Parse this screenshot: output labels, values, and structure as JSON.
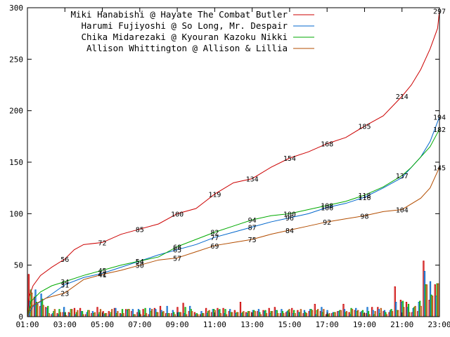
{
  "chart_data": {
    "type": "line",
    "title": "",
    "xlabel": "",
    "ylabel": "",
    "xlim": [
      "01:00",
      "23:00"
    ],
    "ylim": [
      0,
      300
    ],
    "grid": false,
    "legend_position": "top-right",
    "x_ticks": [
      "01:00",
      "03:00",
      "05:00",
      "07:00",
      "09:00",
      "11:00",
      "13:00",
      "15:00",
      "17:00",
      "19:00",
      "21:00",
      "23:00"
    ],
    "y_ticks": [
      "0",
      "50",
      "100",
      "150",
      "200",
      "250",
      "300"
    ],
    "colors": [
      "#cc0000",
      "#0066cc",
      "#00aa00",
      "#b34d00"
    ],
    "series": [
      {
        "name": "Miki Hanabishi @ Hayate The Combat Butler",
        "color": "#cc0000",
        "points": [
          [
            1.0,
            0
          ],
          [
            1.1,
            20
          ],
          [
            1.3,
            30
          ],
          [
            1.7,
            40
          ],
          [
            2.3,
            48
          ],
          [
            3.0,
            56
          ],
          [
            3.5,
            65
          ],
          [
            4.0,
            70
          ],
          [
            5.0,
            72
          ],
          [
            6.0,
            80
          ],
          [
            7.0,
            85
          ],
          [
            8.0,
            90
          ],
          [
            9.0,
            100
          ],
          [
            10.0,
            105
          ],
          [
            10.5,
            112
          ],
          [
            11.0,
            119
          ],
          [
            12.0,
            130
          ],
          [
            13.0,
            134
          ],
          [
            14.0,
            145
          ],
          [
            15.0,
            154
          ],
          [
            16.0,
            160
          ],
          [
            17.0,
            168
          ],
          [
            18.0,
            174
          ],
          [
            19.0,
            185
          ],
          [
            20.0,
            195
          ],
          [
            21.0,
            214
          ],
          [
            21.5,
            225
          ],
          [
            22.0,
            240
          ],
          [
            22.5,
            260
          ],
          [
            22.9,
            280
          ],
          [
            23.0,
            297
          ]
        ],
        "labels": [
          [
            3.0,
            56
          ],
          [
            5.0,
            72
          ],
          [
            7.0,
            85
          ],
          [
            9.0,
            100
          ],
          [
            11.0,
            119
          ],
          [
            13.0,
            134
          ],
          [
            15.0,
            154
          ],
          [
            17.0,
            168
          ],
          [
            19.0,
            185
          ],
          [
            21.0,
            214
          ],
          [
            23.0,
            297
          ]
        ]
      },
      {
        "name": "Harumi Fujiyoshi @ So Long, Mr. Despair",
        "color": "#0066cc",
        "points": [
          [
            1.0,
            0
          ],
          [
            1.3,
            10
          ],
          [
            2.0,
            18
          ],
          [
            3.0,
            31
          ],
          [
            4.0,
            38
          ],
          [
            5.0,
            42
          ],
          [
            6.0,
            48
          ],
          [
            7.0,
            54
          ],
          [
            8.0,
            60
          ],
          [
            9.0,
            65
          ],
          [
            10.0,
            70
          ],
          [
            11.0,
            77
          ],
          [
            12.0,
            82
          ],
          [
            13.0,
            87
          ],
          [
            14.0,
            92
          ],
          [
            15.0,
            96
          ],
          [
            16.0,
            100
          ],
          [
            17.0,
            106
          ],
          [
            18.0,
            110
          ],
          [
            19.0,
            116
          ],
          [
            20.0,
            125
          ],
          [
            21.0,
            135
          ],
          [
            21.5,
            145
          ],
          [
            22.0,
            155
          ],
          [
            22.5,
            170
          ],
          [
            23.0,
            194
          ]
        ],
        "labels": [
          [
            3.0,
            31
          ],
          [
            5.0,
            42
          ],
          [
            7.0,
            54
          ],
          [
            9.0,
            65
          ],
          [
            11.0,
            77
          ],
          [
            13.0,
            87
          ],
          [
            15.0,
            96
          ],
          [
            17.0,
            106
          ],
          [
            19.0,
            116
          ],
          [
            23.0,
            194
          ]
        ]
      },
      {
        "name": "Chika Midarezaki @ Kyouran Kazoku Nikki",
        "color": "#00aa00",
        "points": [
          [
            1.0,
            0
          ],
          [
            1.2,
            15
          ],
          [
            1.7,
            24
          ],
          [
            2.3,
            30
          ],
          [
            3.0,
            34
          ],
          [
            4.0,
            40
          ],
          [
            5.0,
            45
          ],
          [
            6.0,
            50
          ],
          [
            7.0,
            54
          ],
          [
            8.0,
            58
          ],
          [
            9.0,
            68
          ],
          [
            10.0,
            75
          ],
          [
            11.0,
            82
          ],
          [
            12.0,
            88
          ],
          [
            13.0,
            94
          ],
          [
            14.0,
            98
          ],
          [
            15.0,
            100
          ],
          [
            16.0,
            104
          ],
          [
            17.0,
            108
          ],
          [
            18.0,
            112
          ],
          [
            19.0,
            118
          ],
          [
            20.0,
            126
          ],
          [
            21.0,
            137
          ],
          [
            21.5,
            145
          ],
          [
            22.0,
            155
          ],
          [
            22.5,
            165
          ],
          [
            23.0,
            182
          ]
        ],
        "labels": [
          [
            3.0,
            34
          ],
          [
            5.0,
            45
          ],
          [
            7.0,
            54
          ],
          [
            9.0,
            68
          ],
          [
            11.0,
            82
          ],
          [
            13.0,
            94
          ],
          [
            15.0,
            100
          ],
          [
            17.0,
            108
          ],
          [
            19.0,
            118
          ],
          [
            21.0,
            137
          ],
          [
            23.0,
            182
          ]
        ]
      },
      {
        "name": "Allison Whittington @ Allison & Lillia",
        "color": "#b34d00",
        "points": [
          [
            1.0,
            0
          ],
          [
            1.2,
            10
          ],
          [
            2.0,
            18
          ],
          [
            3.0,
            23
          ],
          [
            4.0,
            36
          ],
          [
            5.0,
            41
          ],
          [
            6.0,
            45
          ],
          [
            7.0,
            50
          ],
          [
            8.0,
            55
          ],
          [
            9.0,
            57
          ],
          [
            10.0,
            63
          ],
          [
            11.0,
            69
          ],
          [
            12.0,
            72
          ],
          [
            13.0,
            75
          ],
          [
            14.0,
            80
          ],
          [
            15.0,
            84
          ],
          [
            16.0,
            88
          ],
          [
            17.0,
            92
          ],
          [
            18.0,
            95
          ],
          [
            19.0,
            98
          ],
          [
            20.0,
            102
          ],
          [
            21.0,
            104
          ],
          [
            22.0,
            115
          ],
          [
            22.5,
            125
          ],
          [
            23.0,
            145
          ]
        ],
        "labels": [
          [
            3.0,
            23
          ],
          [
            5.0,
            41
          ],
          [
            7.0,
            50
          ],
          [
            9.0,
            57
          ],
          [
            11.0,
            69
          ],
          [
            13.0,
            75
          ],
          [
            15.0,
            84
          ],
          [
            17.0,
            92
          ],
          [
            19.0,
            98
          ],
          [
            21.0,
            104
          ],
          [
            23.0,
            145
          ]
        ]
      }
    ],
    "bar_series": [
      [
        41,
        19,
        10,
        9,
        2,
        3,
        4,
        4,
        8,
        8,
        2,
        3,
        9,
        5,
        5,
        8,
        3,
        7,
        5,
        4,
        7,
        2,
        8,
        10,
        3,
        3,
        9,
        13,
        5,
        4,
        2,
        8,
        4,
        8,
        8,
        5,
        6,
        14,
        4,
        4,
        5,
        6,
        8,
        9,
        3,
        4,
        8,
        6,
        3,
        5,
        12,
        5,
        2,
        3,
        5,
        12,
        4,
        6,
        4,
        3,
        9,
        9,
        5,
        4,
        29,
        16,
        14,
        4,
        5,
        54,
        16,
        31
      ],
      [
        15,
        26,
        22,
        8,
        3,
        2,
        9,
        3,
        2,
        5,
        4,
        5,
        2,
        2,
        2,
        8,
        2,
        6,
        7,
        7,
        1,
        8,
        7,
        6,
        10,
        6,
        4,
        3,
        10,
        2,
        5,
        3,
        7,
        6,
        3,
        7,
        3,
        3,
        3,
        6,
        7,
        5,
        3,
        6,
        7,
        5,
        3,
        4,
        6,
        7,
        2,
        9,
        6,
        4,
        5,
        7,
        2,
        8,
        5,
        9,
        6,
        7,
        6,
        6,
        14,
        14,
        9,
        8,
        14,
        44,
        34,
        20
      ],
      [
        26,
        14,
        17,
        10,
        5,
        7,
        4,
        7,
        4,
        5,
        6,
        3,
        4,
        3,
        4,
        3,
        7,
        7,
        2,
        6,
        8,
        5,
        4,
        4,
        3,
        4,
        4,
        9,
        7,
        3,
        3,
        5,
        7,
        7,
        7,
        4,
        4,
        4,
        5,
        6,
        4,
        6,
        5,
        6,
        5,
        6,
        6,
        4,
        4,
        7,
        6,
        4,
        2,
        4,
        6,
        4,
        8,
        5,
        6,
        5,
        2,
        3,
        4,
        7,
        6,
        15,
        12,
        9,
        15,
        31,
        21,
        32
      ],
      [
        23,
        12,
        11,
        3,
        7,
        4,
        1,
        7,
        6,
        2,
        6,
        4,
        7,
        3,
        7,
        5,
        3,
        7,
        2,
        2,
        3,
        7,
        4,
        5,
        3,
        2,
        4,
        2,
        5,
        2,
        3,
        6,
        6,
        3,
        2,
        4,
        4,
        5,
        5,
        5,
        2,
        3,
        5,
        3,
        3,
        7,
        3,
        7,
        3,
        6,
        7,
        7,
        3,
        4,
        6,
        5,
        7,
        6,
        3,
        2,
        5,
        8,
        2,
        5,
        6,
        9,
        4,
        10,
        10,
        31,
        20,
        32
      ]
    ]
  }
}
